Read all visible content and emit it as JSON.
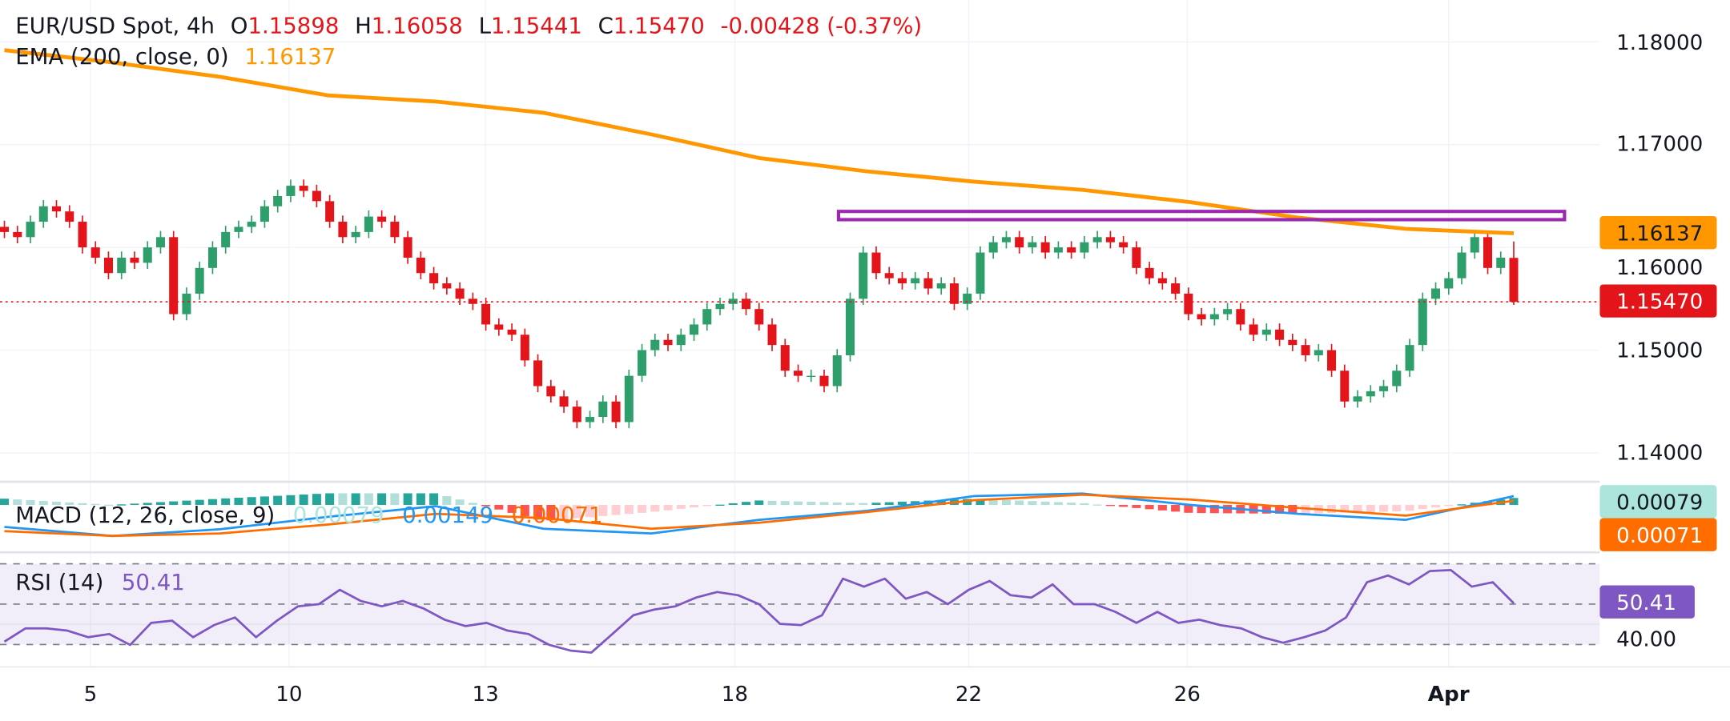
{
  "header": {
    "symbol": "EUR/USD Spot, 4h",
    "o_label": "O",
    "open": "1.15898",
    "h_label": "H",
    "high": "1.16058",
    "l_label": "L",
    "low": "1.15441",
    "c_label": "C",
    "close": "1.15470",
    "change": "-0.00428 (-0.37%)",
    "ema_label": "EMA (200, close, 0)",
    "ema_value": "1.16137"
  },
  "macd": {
    "label": "MACD (12, 26, close, 9)",
    "hist": "0.00079",
    "macd": "0.00149",
    "signal": "0.00071"
  },
  "rsi": {
    "label": "RSI (14)",
    "value": "50.41"
  },
  "price_axis": [
    "1.18000",
    "1.17000",
    "1.16000",
    "1.15000",
    "1.14000"
  ],
  "rsi_axis": [
    "40.00"
  ],
  "badges": {
    "ema": "1.16137",
    "close": "1.15470",
    "hist": "0.00079",
    "signal": "0.00071",
    "rsi": "50.41"
  },
  "x_axis": [
    "5",
    "10",
    "13",
    "18",
    "22",
    "26",
    "Apr"
  ],
  "colors": {
    "up": "#2e9e6b",
    "down": "#e3151a",
    "ema": "#ff9800",
    "resistance": "#9c27b0",
    "macd": "#2196f3",
    "signal": "#ff6d00",
    "rsi": "#7e57c2"
  },
  "chart_data": {
    "type": "candlestick",
    "title": "EUR/USD Spot, 4h",
    "ylim": [
      1.135,
      1.185
    ],
    "first_open": 1.162,
    "last_candle": {
      "open": 1.15898,
      "high": 1.16058,
      "low": 1.15441,
      "close": 1.1547
    },
    "close": [
      1.1615,
      1.161,
      1.1625,
      1.164,
      1.1635,
      1.1625,
      1.16,
      1.159,
      1.1575,
      1.159,
      1.1585,
      1.16,
      1.161,
      1.1535,
      1.1555,
      1.158,
      1.16,
      1.1615,
      1.162,
      1.1625,
      1.164,
      1.165,
      1.166,
      1.1655,
      1.1645,
      1.1625,
      1.161,
      1.1615,
      1.163,
      1.1625,
      1.161,
      1.159,
      1.1575,
      1.1565,
      1.156,
      1.155,
      1.1545,
      1.1525,
      1.152,
      1.1515,
      1.149,
      1.1465,
      1.1455,
      1.1445,
      1.143,
      1.1435,
      1.145,
      1.143,
      1.1475,
      1.15,
      1.151,
      1.1505,
      1.1515,
      1.1525,
      1.154,
      1.1545,
      1.155,
      1.154,
      1.1525,
      1.1505,
      1.148,
      1.1475,
      1.1475,
      1.1465,
      1.1495,
      1.155,
      1.1595,
      1.1575,
      1.157,
      1.1565,
      1.157,
      1.156,
      1.1565,
      1.1545,
      1.1555,
      1.1595,
      1.1605,
      1.161,
      1.16,
      1.1605,
      1.1595,
      1.16,
      1.1595,
      1.1605,
      1.161,
      1.1605,
      1.16,
      1.158,
      1.157,
      1.1565,
      1.1555,
      1.1535,
      1.153,
      1.1535,
      1.154,
      1.1525,
      1.1515,
      1.152,
      1.151,
      1.1505,
      1.1495,
      1.15,
      1.148,
      1.145,
      1.1455,
      1.146,
      1.1465,
      1.148,
      1.1505,
      1.155,
      1.156,
      1.157,
      1.1595,
      1.161,
      1.158,
      1.159,
      1.1547
    ],
    "ema200": [
      1.1792,
      1.178,
      1.1766,
      1.1748,
      1.1742,
      1.1731,
      1.171,
      1.1687,
      1.1674,
      1.1664,
      1.1656,
      1.1644,
      1.1629,
      1.1618,
      1.16137
    ],
    "resistance_zone": [
      1.1627,
      1.1635
    ],
    "current_price_line": 1.1547,
    "macd_line": [
      -0.0037,
      -0.0052,
      -0.0041,
      -0.002,
      -0.0002,
      -0.004,
      -0.0048,
      -0.0025,
      -0.001,
      0.0015,
      0.0019,
      0.0,
      -0.0015,
      -0.0025,
      0.00149
    ],
    "signal_line": [
      -0.0044,
      -0.0052,
      -0.0048,
      -0.0033,
      -0.0015,
      -0.0022,
      -0.004,
      -0.003,
      -0.0012,
      0.0008,
      0.0017,
      0.0009,
      -0.0005,
      -0.0018,
      0.00071
    ],
    "rsi_values": [
      31.4,
      38.0,
      38.0,
      36.9,
      33.6,
      35.2,
      29.8,
      40.7,
      41.8,
      33.6,
      39.6,
      43.4,
      33.6,
      41.8,
      48.9,
      50.0,
      57.1,
      51.6,
      48.9,
      51.6,
      47.8,
      42.3,
      39.1,
      40.7,
      36.9,
      35.2,
      29.8,
      27.0,
      26.0,
      35.2,
      44.5,
      47.3,
      48.9,
      53.3,
      56.0,
      54.4,
      50.0,
      40.2,
      39.6,
      44.5,
      62.6,
      58.7,
      62.6,
      52.7,
      56.0,
      50.0,
      57.1,
      61.5,
      54.4,
      53.3,
      59.8,
      50.0,
      50.0,
      46.2,
      40.7,
      46.2,
      40.7,
      42.3,
      39.6,
      38.0,
      33.6,
      30.9,
      33.6,
      36.9,
      43.4,
      60.9,
      64.2,
      59.8,
      66.4,
      66.9,
      58.7,
      60.9,
      50.41
    ],
    "rsi_levels": [
      70,
      50,
      30
    ]
  }
}
